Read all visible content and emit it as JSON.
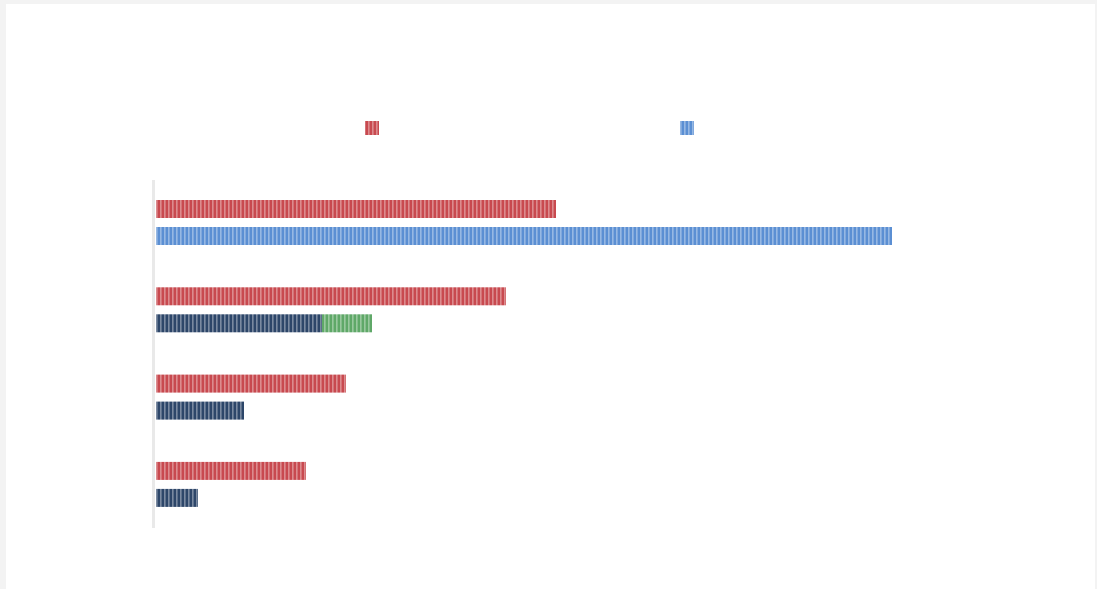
{
  "chart_data": {
    "type": "bar",
    "orientation": "horizontal",
    "categories": [
      "",
      "",
      "",
      ""
    ],
    "series": [
      {
        "color": "#c8494f",
        "values": [
          100,
          87.5,
          47.5,
          37.5
        ]
      },
      {
        "stack": [
          {
            "color": "#5b8fd3",
            "values": [
              184,
              0,
              0,
              0
            ]
          },
          {
            "color": "#2d4669",
            "values": [
              0,
              41.5,
              22,
              10.5
            ]
          },
          {
            "color": "#5fa868",
            "values": [
              0,
              12.5,
              0,
              0
            ]
          }
        ]
      }
    ],
    "xlim": [
      0,
      250
    ],
    "legend": {
      "placement": "top",
      "entries": [
        {
          "label": "",
          "color": "#c8494f"
        },
        {
          "label": "",
          "color": "#5b8fd3"
        }
      ]
    },
    "grid": false,
    "bar_style": "vertical-stripes"
  }
}
